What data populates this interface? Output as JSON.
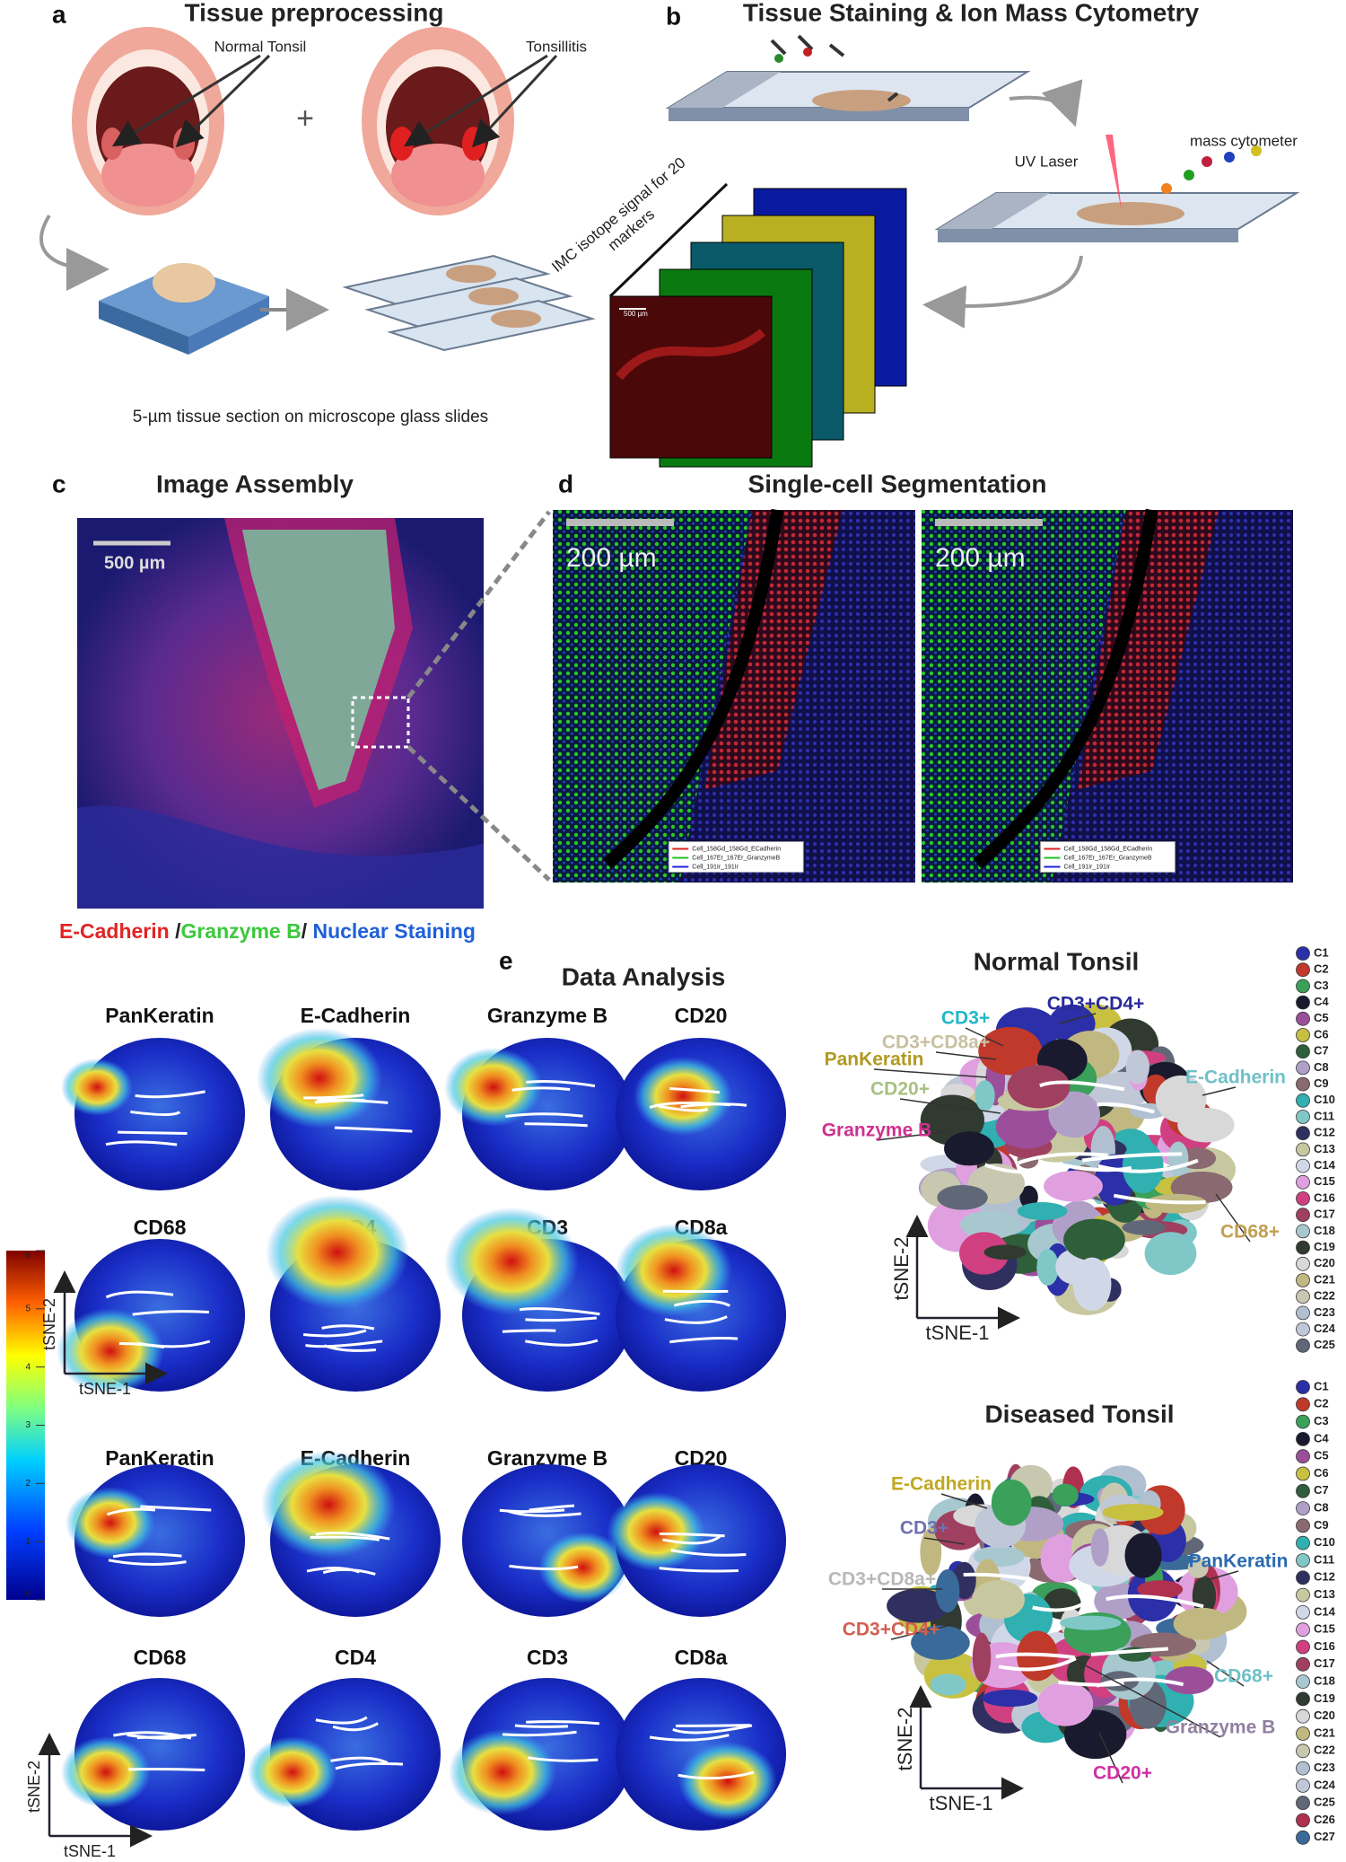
{
  "panel_a": {
    "label": "a",
    "title": "Tissue preprocessing",
    "normal": "Normal Tonsil",
    "plus": "+",
    "disease": "Tonsillitis",
    "caption": "5-µm tissue section on microscope glass slides"
  },
  "panel_b": {
    "label": "b",
    "title": "Tissue Staining & Ion Mass Cytometry",
    "laser": "UV Laser",
    "cytometer": "mass cytometer",
    "stack_label": [
      "IMC isotope signal for 20",
      "markers"
    ],
    "scale_bar": "500 µm"
  },
  "panel_c": {
    "label": "c",
    "title": "Image Assembly",
    "scale_bar": "500 µm",
    "caption": [
      {
        "text": "E-Cadherin",
        "color": "#e02424"
      },
      {
        "text": " /",
        "color": "#222222"
      },
      {
        "text": "Granzyme B",
        "color": "#3cc83c"
      },
      {
        "text": "/ ",
        "color": "#222222"
      },
      {
        "text": "Nuclear Staining",
        "color": "#2060d8"
      }
    ]
  },
  "panel_d": {
    "label": "d",
    "title": "Single-cell Segmentation",
    "scale_bar": "200 µm",
    "legend": [
      {
        "text": "Cell_158Gd_158Gd_ECadherin",
        "color": "#e02020"
      },
      {
        "text": "Cell_167Er_167Er_GranzymeB",
        "color": "#20c020"
      },
      {
        "text": "Cell_191Ir_191Ir",
        "color": "#2020e0"
      }
    ]
  },
  "panel_e": {
    "label": "e",
    "title": "Data Analysis",
    "markers": [
      "PanKeratin",
      "E-Cadherin",
      "Granzyme B",
      "CD20",
      "CD68",
      "CD4",
      "CD3",
      "CD8a"
    ],
    "axis_x": "tSNE-1",
    "axis_y": "tSNE-2",
    "colorbar_ticks": [
      0,
      1,
      2,
      3,
      4,
      5,
      6
    ],
    "normal": {
      "title": "Normal Tonsil",
      "labels": [
        {
          "text": "CD3+CD4+",
          "color": "#2a2a9a"
        },
        {
          "text": "CD3+",
          "color": "#20b8c8"
        },
        {
          "text": "CD3+CD8a+",
          "color": "#c8c0a0"
        },
        {
          "text": "PanKeratin",
          "color": "#b09a20"
        },
        {
          "text": "CD20+",
          "color": "#a8c080"
        },
        {
          "text": "Granzyme B",
          "color": "#d03090"
        },
        {
          "text": "E-Cadherin",
          "color": "#70c0c8"
        },
        {
          "text": "CD68+",
          "color": "#c0a050"
        }
      ],
      "clusters": [
        {
          "label": "C1",
          "color": "#2b2fa8"
        },
        {
          "label": "C2",
          "color": "#c0392b"
        },
        {
          "label": "C3",
          "color": "#3aa05a"
        },
        {
          "label": "C4",
          "color": "#1a1a2e"
        },
        {
          "label": "C5",
          "color": "#9b4f9b"
        },
        {
          "label": "C6",
          "color": "#c8c040"
        },
        {
          "label": "C7",
          "color": "#2e5e3a"
        },
        {
          "label": "C8",
          "color": "#b0a0c8"
        },
        {
          "label": "C9",
          "color": "#8a6a70"
        },
        {
          "label": "C10",
          "color": "#30b0b0"
        },
        {
          "label": "C11",
          "color": "#80c8c8"
        },
        {
          "label": "C12",
          "color": "#303060"
        },
        {
          "label": "C13",
          "color": "#c8c8a0"
        },
        {
          "label": "C14",
          "color": "#d0d8e8"
        },
        {
          "label": "C15",
          "color": "#e0a0e0"
        },
        {
          "label": "C16",
          "color": "#d04080"
        },
        {
          "label": "C17",
          "color": "#a04060"
        },
        {
          "label": "C18",
          "color": "#a8c8d0"
        },
        {
          "label": "C19",
          "color": "#303a30"
        },
        {
          "label": "C20",
          "color": "#d8d8d8"
        },
        {
          "label": "C21",
          "color": "#c0b880"
        },
        {
          "label": "C22",
          "color": "#c8c8b0"
        },
        {
          "label": "C23",
          "color": "#b0c0d0"
        },
        {
          "label": "C24",
          "color": "#c0c8d8"
        },
        {
          "label": "C25",
          "color": "#606878"
        }
      ]
    },
    "diseased": {
      "title": "Diseased Tonsil",
      "labels": [
        {
          "text": "E-Cadherin",
          "color": "#c0a820"
        },
        {
          "text": "CD3+",
          "color": "#7070b0"
        },
        {
          "text": "CD3+CD8a+",
          "color": "#b8b8b8"
        },
        {
          "text": "CD3+CD4+",
          "color": "#d06050"
        },
        {
          "text": "PanKeratin",
          "color": "#2a6ab0"
        },
        {
          "text": "CD68+",
          "color": "#70c0c8"
        },
        {
          "text": "Granzyme B",
          "color": "#9080a0"
        },
        {
          "text": "CD20+",
          "color": "#d030a0"
        }
      ],
      "clusters": [
        {
          "label": "C1",
          "color": "#2b2fa8"
        },
        {
          "label": "C2",
          "color": "#c0392b"
        },
        {
          "label": "C3",
          "color": "#3aa05a"
        },
        {
          "label": "C4",
          "color": "#1a1a2e"
        },
        {
          "label": "C5",
          "color": "#9b4f9b"
        },
        {
          "label": "C6",
          "color": "#c8c040"
        },
        {
          "label": "C7",
          "color": "#2e5e3a"
        },
        {
          "label": "C8",
          "color": "#b0a0c8"
        },
        {
          "label": "C9",
          "color": "#8a6a70"
        },
        {
          "label": "C10",
          "color": "#30b0b0"
        },
        {
          "label": "C11",
          "color": "#80c8c8"
        },
        {
          "label": "C12",
          "color": "#303060"
        },
        {
          "label": "C13",
          "color": "#c8c8a0"
        },
        {
          "label": "C14",
          "color": "#d0d8e8"
        },
        {
          "label": "C15",
          "color": "#e0a0e0"
        },
        {
          "label": "C16",
          "color": "#d04080"
        },
        {
          "label": "C17",
          "color": "#a04060"
        },
        {
          "label": "C18",
          "color": "#a8c8d0"
        },
        {
          "label": "C19",
          "color": "#303a30"
        },
        {
          "label": "C20",
          "color": "#d8d8d8"
        },
        {
          "label": "C21",
          "color": "#c0b880"
        },
        {
          "label": "C22",
          "color": "#c8c8b0"
        },
        {
          "label": "C23",
          "color": "#b0c0d0"
        },
        {
          "label": "C24",
          "color": "#c0c8d8"
        },
        {
          "label": "C25",
          "color": "#606878"
        },
        {
          "label": "C26",
          "color": "#b03050"
        },
        {
          "label": "C27",
          "color": "#3a6a9a"
        }
      ]
    }
  }
}
